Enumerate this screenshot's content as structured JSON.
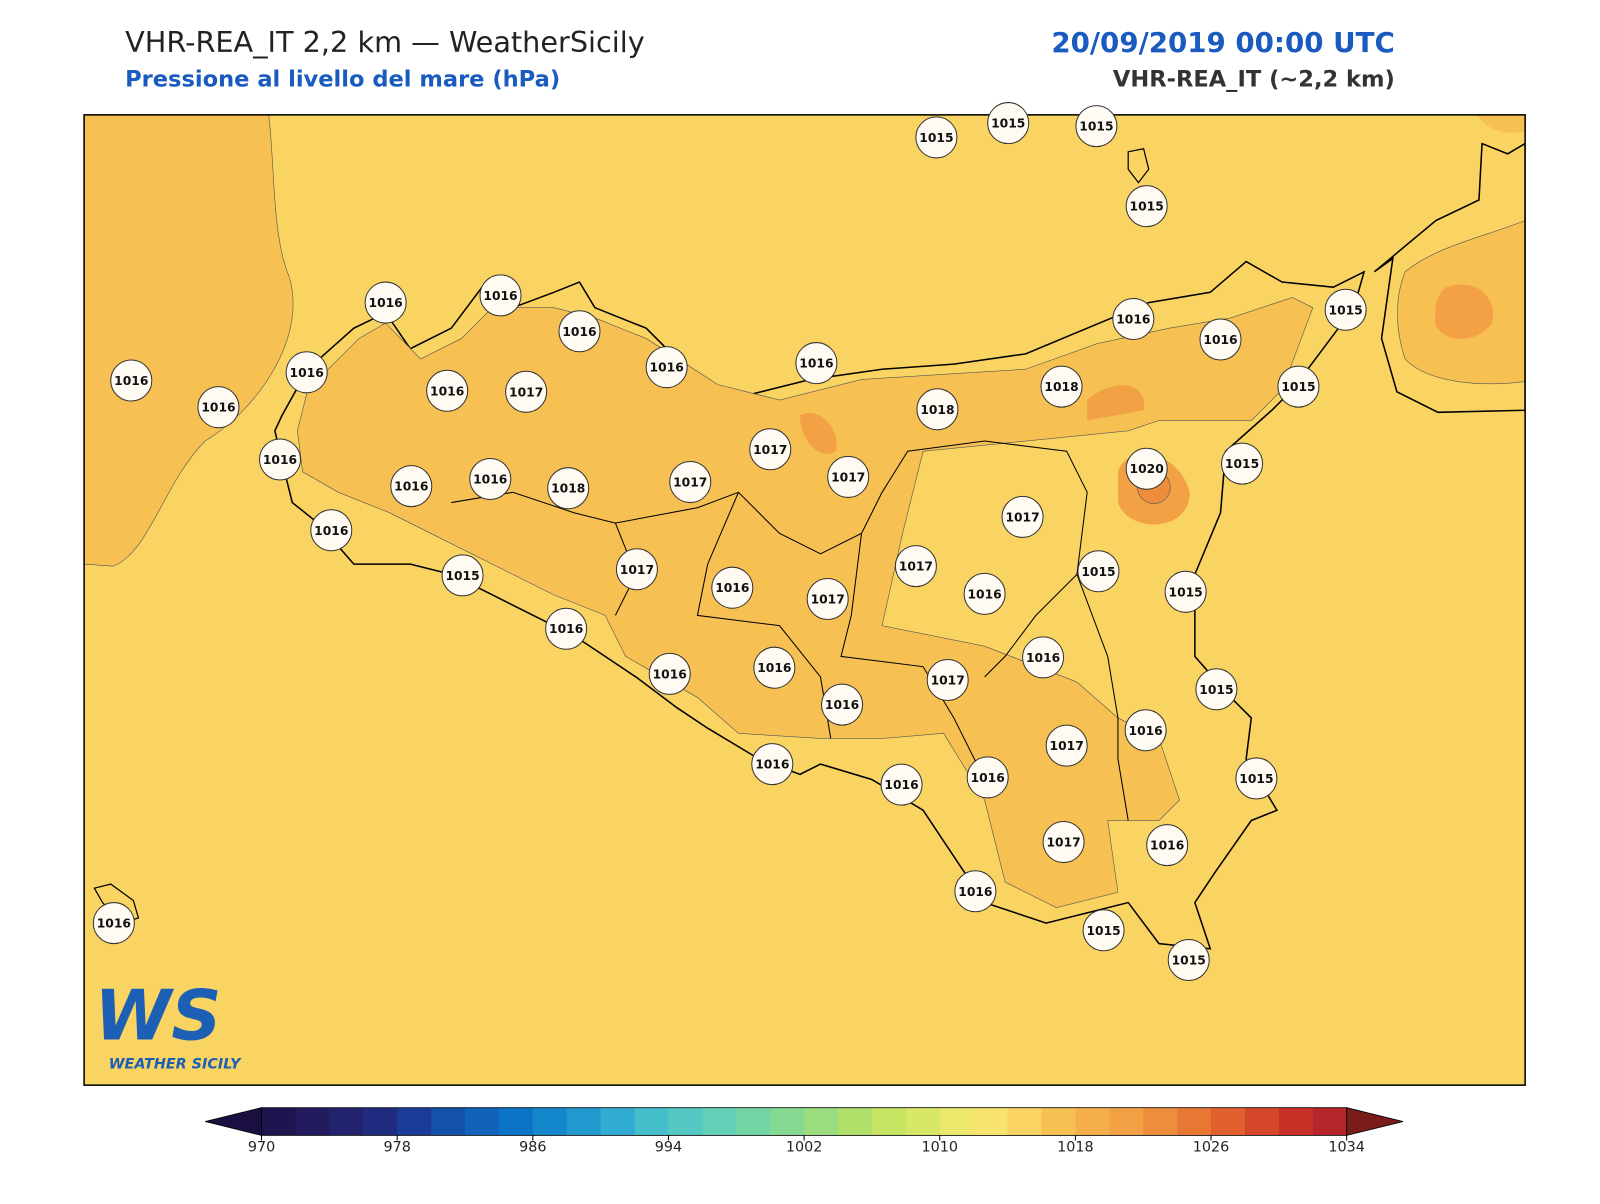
{
  "header": {
    "title": "VHR-REA_IT 2,2 km — WeatherSicily",
    "subtitle": "Pressione al livello del mare (hPa)",
    "date": "20/09/2019 00:00 UTC",
    "model": "VHR-REA_IT (~2,2 km)"
  },
  "stations": [
    1015,
    1015,
    1015,
    1015,
    1016,
    1016,
    1016,
    1016,
    1016,
    1016,
    1016,
    1015,
    1016,
    1016,
    1016,
    1016,
    1017,
    1018,
    1018,
    1015,
    1016,
    1017,
    1017,
    1020,
    1015,
    1016,
    1016,
    1018,
    1017,
    1017,
    1016,
    1015,
    1017,
    1016,
    1017,
    1017,
    1016,
    1015,
    1015,
    1016,
    1016,
    1016,
    1016,
    1017,
    1016,
    1015,
    1017,
    1016,
    1016,
    1016,
    1016,
    1015,
    1017,
    1016,
    1016,
    1016,
    1015,
    1015
  ],
  "colorbar": {
    "lim": [
      970,
      1034
    ],
    "ticks": [
      970,
      978,
      986,
      994,
      1002,
      1010,
      1018,
      1026,
      1034
    ],
    "colors": [
      "#1e1450",
      "#221c5e",
      "#23236d",
      "#1f2c80",
      "#1a3c98",
      "#1550ab",
      "#1062bb",
      "#0c74c7",
      "#1486cc",
      "#2299cf",
      "#31acd2",
      "#45bfcc",
      "#55c8c4",
      "#62cfb6",
      "#73d5a4",
      "#86d991",
      "#9adc7e",
      "#b0e06a",
      "#c6e462",
      "#d9e766",
      "#ebe86c",
      "#f8e46e",
      "#fad462",
      "#f6c052",
      "#f4af4a",
      "#f2a144",
      "#ee8d3c",
      "#e97734",
      "#e1602e",
      "#d6472a",
      "#c83128",
      "#b6252a"
    ],
    "under_color": "#1a0f40",
    "over_color": "#7a1c1c"
  },
  "logo": {
    "mark": "WS",
    "text": "WEATHER SICILY"
  }
}
